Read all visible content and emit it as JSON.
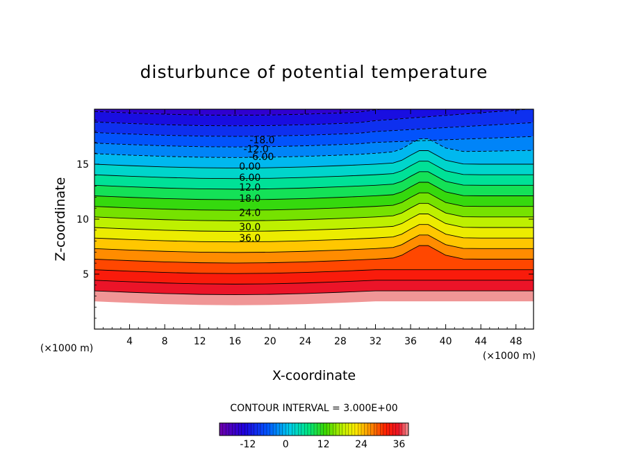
{
  "chart_data": {
    "type": "heatmap",
    "title": "disturbunce of potential temperature",
    "xlabel": "X-coordinate",
    "ylabel": "Z-coordinate",
    "x_unit": "(×1000 m)",
    "z_unit": "(×1000 m)",
    "xlim": [
      0,
      50
    ],
    "ylim": [
      0,
      20
    ],
    "x_ticks": [
      4,
      8,
      12,
      16,
      20,
      24,
      28,
      32,
      36,
      40,
      44,
      48
    ],
    "y_ticks": [
      5,
      10,
      15
    ],
    "contour_interval_text": "CONTOUR INTERVAL = 3.000E+00",
    "contour_labels": [
      {
        "text": "-18.0",
        "x": 19.1,
        "z": 17.2
      },
      {
        "text": "-12.0",
        "x": 18.4,
        "z": 16.4
      },
      {
        "text": "-6.00",
        "x": 19.0,
        "z": 15.7
      },
      {
        "text": "0.00",
        "x": 17.7,
        "z": 14.8
      },
      {
        "text": "6.00",
        "x": 17.7,
        "z": 13.8
      },
      {
        "text": "12.0",
        "x": 17.7,
        "z": 12.9
      },
      {
        "text": "18.0",
        "x": 17.7,
        "z": 11.9
      },
      {
        "text": "24.0",
        "x": 17.7,
        "z": 10.6
      },
      {
        "text": "30.0",
        "x": 17.7,
        "z": 9.3
      },
      {
        "text": "36.0",
        "x": 17.7,
        "z": 8.3
      }
    ],
    "colorbar": {
      "range": [
        -21,
        39
      ],
      "tick_labels": [
        {
          "text": "-12",
          "value": -12
        },
        {
          "text": "0",
          "value": 0
        },
        {
          "text": "12",
          "value": 12
        },
        {
          "text": "24",
          "value": 24
        },
        {
          "text": "36",
          "value": 36
        }
      ]
    },
    "grid": false
  }
}
